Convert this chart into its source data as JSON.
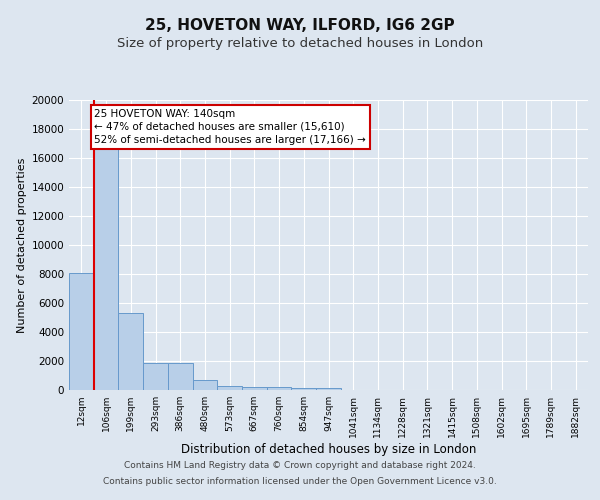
{
  "title1": "25, HOVETON WAY, ILFORD, IG6 2GP",
  "title2": "Size of property relative to detached houses in London",
  "xlabel": "Distribution of detached houses by size in London",
  "ylabel": "Number of detached properties",
  "categories": [
    "12sqm",
    "106sqm",
    "199sqm",
    "293sqm",
    "386sqm",
    "480sqm",
    "573sqm",
    "667sqm",
    "760sqm",
    "854sqm",
    "947sqm",
    "1041sqm",
    "1134sqm",
    "1228sqm",
    "1321sqm",
    "1415sqm",
    "1508sqm",
    "1602sqm",
    "1695sqm",
    "1789sqm",
    "1882sqm"
  ],
  "values": [
    8100,
    16600,
    5300,
    1850,
    1850,
    700,
    300,
    220,
    200,
    170,
    150,
    0,
    0,
    0,
    0,
    0,
    0,
    0,
    0,
    0,
    0
  ],
  "bar_color": "#b8cfe8",
  "bar_edge_color": "#6699cc",
  "red_line_color": "#dd0000",
  "annotation_text": "25 HOVETON WAY: 140sqm\n← 47% of detached houses are smaller (15,610)\n52% of semi-detached houses are larger (17,166) →",
  "annotation_box_color": "#ffffff",
  "annotation_box_edge": "#cc0000",
  "background_color": "#dde6f0",
  "plot_bg_color": "#dde6f0",
  "grid_color": "#ffffff",
  "ylim": [
    0,
    20000
  ],
  "yticks": [
    0,
    2000,
    4000,
    6000,
    8000,
    10000,
    12000,
    14000,
    16000,
    18000,
    20000
  ],
  "footer_line1": "Contains HM Land Registry data © Crown copyright and database right 2024.",
  "footer_line2": "Contains public sector information licensed under the Open Government Licence v3.0.",
  "title1_fontsize": 11,
  "title2_fontsize": 9.5,
  "annotation_fontsize": 7.5,
  "footer_fontsize": 6.5,
  "ylabel_fontsize": 8,
  "xlabel_fontsize": 8.5,
  "ytick_fontsize": 7.5,
  "xtick_fontsize": 6.5
}
